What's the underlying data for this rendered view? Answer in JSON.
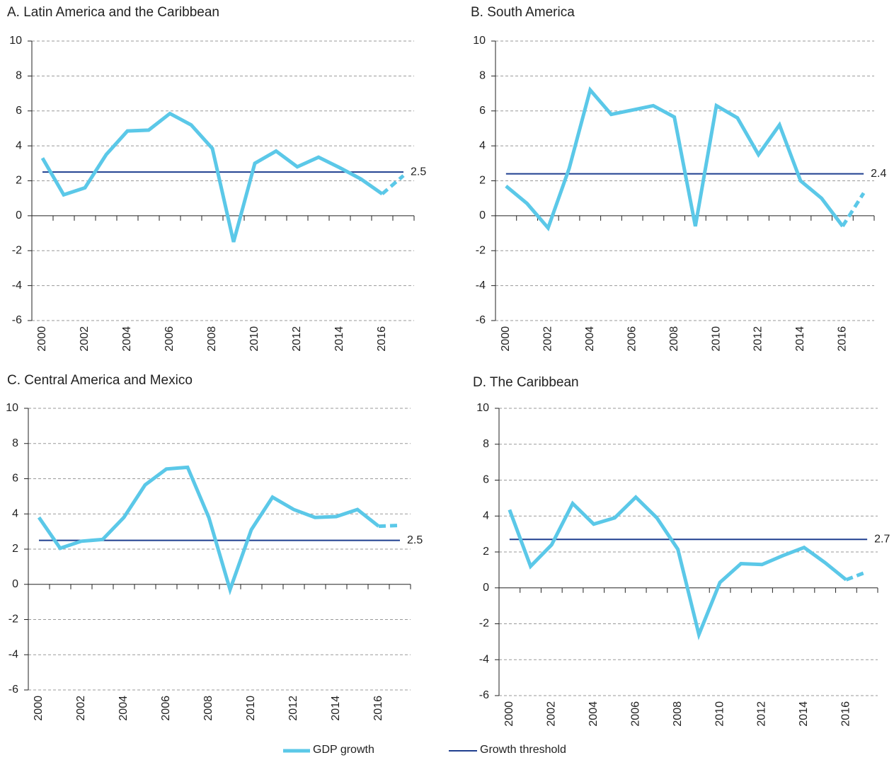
{
  "legend": [
    {
      "name": "GDP growth",
      "color": "#5bc8e8"
    },
    {
      "name": "Growth threshold",
      "color": "#1f3f8f"
    }
  ],
  "chart_data": [
    {
      "type": "line",
      "title": "A. Latin America and the Caribbean",
      "categories": [
        "2000",
        null,
        "2002",
        null,
        "2004",
        null,
        "2006",
        null,
        "2008",
        null,
        "2010",
        null,
        "2012",
        null,
        "2014",
        null,
        "2016",
        null
      ],
      "values": [
        3.3,
        1.2,
        1.6,
        3.5,
        4.85,
        4.9,
        5.85,
        5.2,
        3.85,
        -1.5,
        3.0,
        3.7,
        2.8,
        3.35,
        2.75,
        2.1,
        1.25,
        2.3
      ],
      "dashed_from": 16,
      "threshold": 2.5,
      "ylim": [
        -6,
        10
      ],
      "yticks": [
        -6,
        -4,
        -2,
        0,
        2,
        4,
        6,
        8,
        10
      ],
      "grid": true
    },
    {
      "type": "line",
      "title": "B. South America",
      "categories": [
        "2000",
        null,
        "2002",
        null,
        "2004",
        null,
        "2006",
        null,
        "2008",
        null,
        "2010",
        null,
        "2012",
        null,
        "2014",
        null,
        "2016",
        null
      ],
      "values": [
        1.7,
        0.7,
        -0.7,
        2.7,
        7.2,
        5.8,
        6.05,
        6.3,
        5.65,
        -0.6,
        6.3,
        5.6,
        3.5,
        5.2,
        2.0,
        1.0,
        -0.6,
        1.3
      ],
      "dashed_from": 16,
      "threshold": 2.4,
      "ylim": [
        -6,
        10
      ],
      "yticks": [
        -6,
        -4,
        -2,
        0,
        2,
        4,
        6,
        8,
        10
      ],
      "grid": true
    },
    {
      "type": "line",
      "title": "C. Central America and Mexico",
      "categories": [
        "2000",
        null,
        "2002",
        null,
        "2004",
        null,
        "2006",
        null,
        "2008",
        null,
        "2010",
        null,
        "2012",
        null,
        "2014",
        null,
        "2016",
        null
      ],
      "values": [
        3.8,
        2.05,
        2.45,
        2.55,
        3.8,
        5.65,
        6.55,
        6.65,
        3.8,
        -0.3,
        3.1,
        4.95,
        4.25,
        3.8,
        3.85,
        4.25,
        3.3,
        3.35
      ],
      "dashed_from": 16,
      "threshold": 2.5,
      "ylim": [
        -6,
        10
      ],
      "yticks": [
        -6,
        -4,
        -2,
        0,
        2,
        4,
        6,
        8,
        10
      ],
      "grid": true
    },
    {
      "type": "line",
      "title": "D. The Caribbean",
      "categories": [
        "2000",
        null,
        "2002",
        null,
        "2004",
        null,
        "2006",
        null,
        "2008",
        null,
        "2010",
        null,
        "2012",
        null,
        "2014",
        null,
        "2016",
        null
      ],
      "values": [
        4.35,
        1.2,
        2.4,
        4.7,
        3.55,
        3.9,
        5.05,
        3.9,
        2.15,
        -2.6,
        0.3,
        1.35,
        1.3,
        1.8,
        2.25,
        1.4,
        0.45,
        0.9
      ],
      "dashed_from": 16,
      "threshold": 2.7,
      "ylim": [
        -6,
        10
      ],
      "yticks": [
        -6,
        -4,
        -2,
        0,
        2,
        4,
        6,
        8,
        10
      ],
      "grid": true
    }
  ]
}
